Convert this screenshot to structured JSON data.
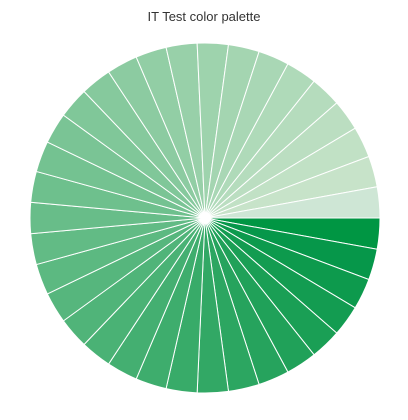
{
  "chart_data": {
    "type": "pie",
    "title": "IT Test color palette",
    "legend": "none",
    "start": "3 o'clock, clockwise",
    "slices": [
      {
        "value": 1,
        "color": "#009643"
      },
      {
        "value": 1,
        "color": "#06974a"
      },
      {
        "value": 1,
        "color": "#0d9a4d"
      },
      {
        "value": 1,
        "color": "#139c51"
      },
      {
        "value": 1,
        "color": "#1a9f55"
      },
      {
        "value": 1,
        "color": "#20a159"
      },
      {
        "value": 1,
        "color": "#26a35d"
      },
      {
        "value": 1,
        "color": "#2ca661"
      },
      {
        "value": 1,
        "color": "#32a865"
      },
      {
        "value": 1,
        "color": "#38ab69"
      },
      {
        "value": 1,
        "color": "#3ead6d"
      },
      {
        "value": 1,
        "color": "#44af71"
      },
      {
        "value": 1,
        "color": "#4ab275"
      },
      {
        "value": 1,
        "color": "#50b479"
      },
      {
        "value": 1,
        "color": "#56b67d"
      },
      {
        "value": 1,
        "color": "#5cb981"
      },
      {
        "value": 1,
        "color": "#62bb85"
      },
      {
        "value": 1,
        "color": "#68bd89"
      },
      {
        "value": 1,
        "color": "#6ec08d"
      },
      {
        "value": 1,
        "color": "#74c291"
      },
      {
        "value": 1,
        "color": "#7ac495"
      },
      {
        "value": 1,
        "color": "#80c799"
      },
      {
        "value": 1,
        "color": "#86c99d"
      },
      {
        "value": 1,
        "color": "#8ccba1"
      },
      {
        "value": 1,
        "color": "#92cea5"
      },
      {
        "value": 1,
        "color": "#98d0a9"
      },
      {
        "value": 1,
        "color": "#9ed3ad"
      },
      {
        "value": 1,
        "color": "#a4d5b1"
      },
      {
        "value": 1,
        "color": "#a9d7b5"
      },
      {
        "value": 1,
        "color": "#afdab9"
      },
      {
        "value": 1,
        "color": "#b5dcbd"
      },
      {
        "value": 1,
        "color": "#bbdec1"
      },
      {
        "value": 1,
        "color": "#c1e1c5"
      },
      {
        "value": 1,
        "color": "#c7e3c9"
      },
      {
        "value": 1,
        "color": "#cee6d5"
      }
    ]
  }
}
